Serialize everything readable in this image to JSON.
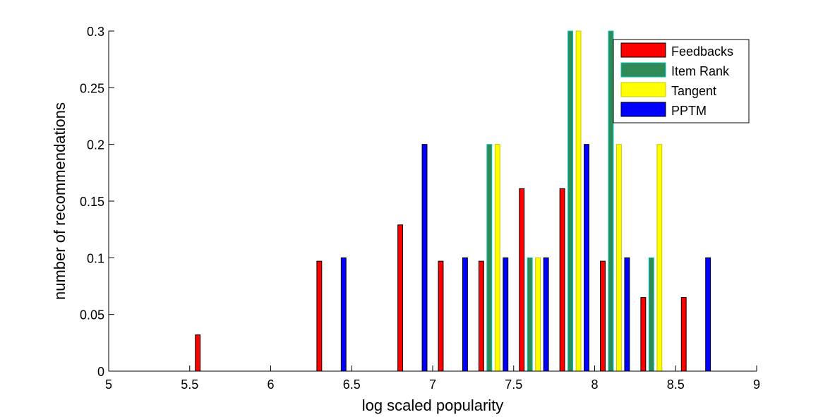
{
  "chart_data": {
    "type": "bar",
    "xlabel": "log scaled popularity",
    "ylabel": "number of recommendations",
    "xlim": [
      5,
      9
    ],
    "ylim": [
      0,
      0.3
    ],
    "x_ticks": [
      "5",
      "5.5",
      "6",
      "6.5",
      "7",
      "7.5",
      "8",
      "8.5",
      "9"
    ],
    "y_ticks": [
      "0",
      "0.05",
      "0.1",
      "0.15",
      "0.2",
      "0.25",
      "0.3"
    ],
    "grid": false,
    "legend_position": "top-right",
    "bin_centers": [
      5.125,
      5.375,
      5.625,
      5.875,
      6.125,
      6.375,
      6.625,
      6.875,
      7.125,
      7.375,
      7.625,
      7.875,
      8.125,
      8.375,
      8.625,
      8.875
    ],
    "series": [
      {
        "name": "Feedbacks",
        "color": "#ff0000",
        "edge": "#000000",
        "values": [
          0,
          0,
          0.032,
          0,
          0,
          0.097,
          0,
          0.129,
          0.097,
          0.097,
          0.161,
          0.161,
          0.097,
          0.065,
          0.065,
          0
        ]
      },
      {
        "name": "Item Rank",
        "color": "#2e8b57",
        "edge": "#00c0c0",
        "values": [
          0,
          0,
          0,
          0,
          0,
          0,
          0,
          0,
          0,
          0.2,
          0.1,
          0.3,
          0.3,
          0.1,
          0,
          0
        ]
      },
      {
        "name": "Tangent",
        "color": "#ffff00",
        "edge": "#c8c800",
        "values": [
          0,
          0,
          0,
          0,
          0,
          0,
          0,
          0,
          0,
          0.2,
          0.1,
          0.3,
          0.2,
          0.2,
          0,
          0
        ]
      },
      {
        "name": "PPTM",
        "color": "#0000ff",
        "edge": "#000000",
        "values": [
          0,
          0,
          0,
          0,
          0,
          0.1,
          0,
          0.2,
          0.1,
          0.1,
          0.1,
          0.2,
          0.1,
          0,
          0.1,
          0
        ]
      }
    ]
  }
}
